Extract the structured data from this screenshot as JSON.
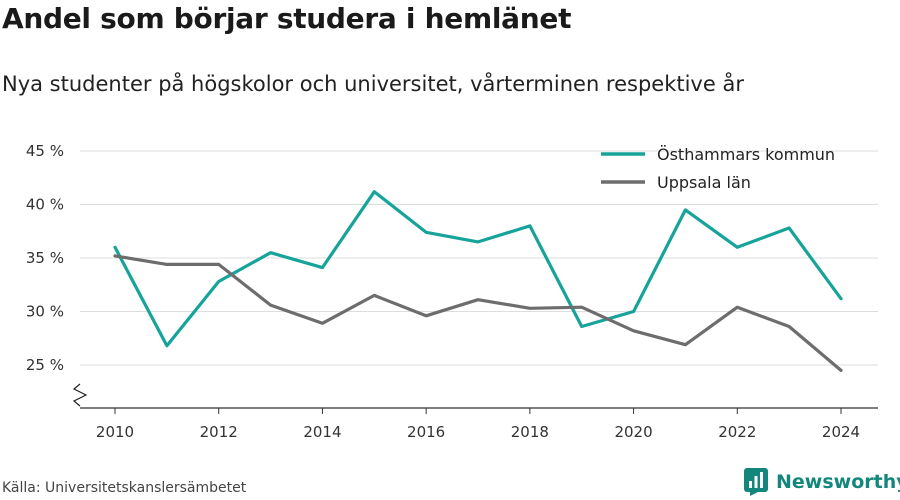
{
  "header": {
    "title": "Andel som börjar studera i hemlänet",
    "subtitle": "Nya studenter på högskolor och universitet, vårterminen respektive år"
  },
  "footer": {
    "source": "Källa: Universitetskanslersämbetet",
    "brand_name": "Newsworthy",
    "brand_icon": "bar-chart-logo-icon"
  },
  "colors": {
    "osthammar": "#16a39a",
    "uppsala": "#6d6d6d",
    "brand": "#13877c",
    "grid": "#dddddd"
  },
  "chart_data": {
    "type": "line",
    "title": "Andel som börjar studera i hemlänet",
    "subtitle": "Nya studenter på högskolor och universitet, vårterminen respektive år",
    "x": [
      2010,
      2011,
      2012,
      2013,
      2014,
      2015,
      2016,
      2017,
      2018,
      2019,
      2020,
      2021,
      2022,
      2023,
      2024
    ],
    "x_ticks": [
      2010,
      2012,
      2014,
      2016,
      2018,
      2020,
      2022,
      2024
    ],
    "y_ticks": [
      25,
      30,
      35,
      40,
      45
    ],
    "y_tick_labels": [
      "25 %",
      "30 %",
      "35 %",
      "40 %",
      "45 %"
    ],
    "ylim": [
      21,
      46
    ],
    "y_axis_break": true,
    "grid": "horizontal",
    "legend_position": "top-right",
    "series": [
      {
        "name": "Östhammars kommun",
        "color": "#16a39a",
        "values": [
          36.0,
          26.8,
          32.8,
          35.5,
          34.1,
          41.2,
          37.4,
          36.5,
          38.0,
          28.6,
          30.0,
          39.5,
          36.0,
          37.8,
          31.2
        ]
      },
      {
        "name": "Uppsala län",
        "color": "#6d6d6d",
        "values": [
          35.2,
          34.4,
          34.4,
          30.6,
          28.9,
          31.5,
          29.6,
          31.1,
          30.3,
          30.4,
          28.2,
          26.9,
          30.4,
          28.6,
          24.5
        ]
      }
    ]
  }
}
